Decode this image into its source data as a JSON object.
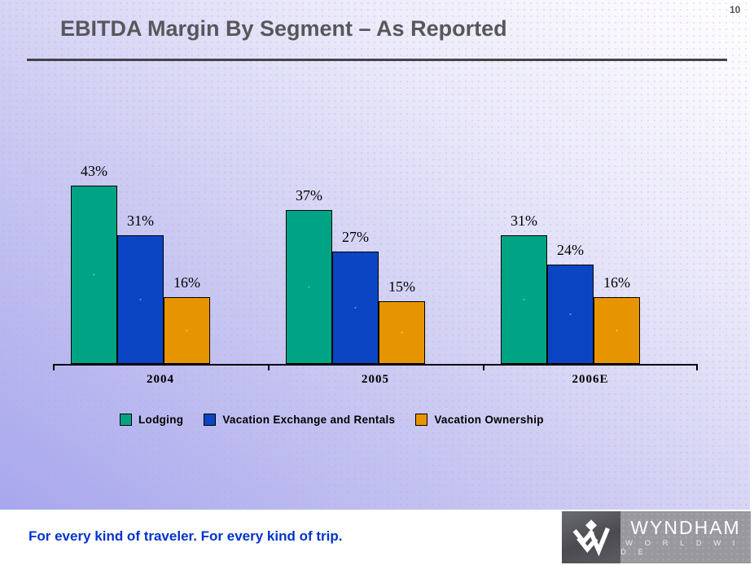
{
  "page": {
    "number": "10"
  },
  "header": {
    "title": "EBITDA Margin By Segment – As Reported"
  },
  "chart_data": {
    "type": "bar",
    "title": "EBITDA Margin By Segment – As Reported",
    "categories": [
      "2004",
      "2005",
      "2006E"
    ],
    "series": [
      {
        "name": "Lodging",
        "color": "#00A383",
        "values": [
          43,
          37,
          31
        ]
      },
      {
        "name": "Vacation Exchange and Rentals",
        "color": "#0B45C4",
        "values": [
          31,
          27,
          24
        ]
      },
      {
        "name": "Vacation Ownership",
        "color": "#E69500",
        "values": [
          16,
          15,
          16
        ]
      }
    ],
    "value_suffix": "%",
    "xlabel": "",
    "ylabel": "",
    "ylim": [
      0,
      50
    ],
    "grid": false,
    "legend_position": "bottom",
    "bar_border_color": "#000000"
  },
  "footer": {
    "tagline": "For every kind of traveler. For every kind of trip."
  },
  "logo": {
    "brand": "WYNDHAM",
    "sub": "W O R L D W I D E"
  }
}
